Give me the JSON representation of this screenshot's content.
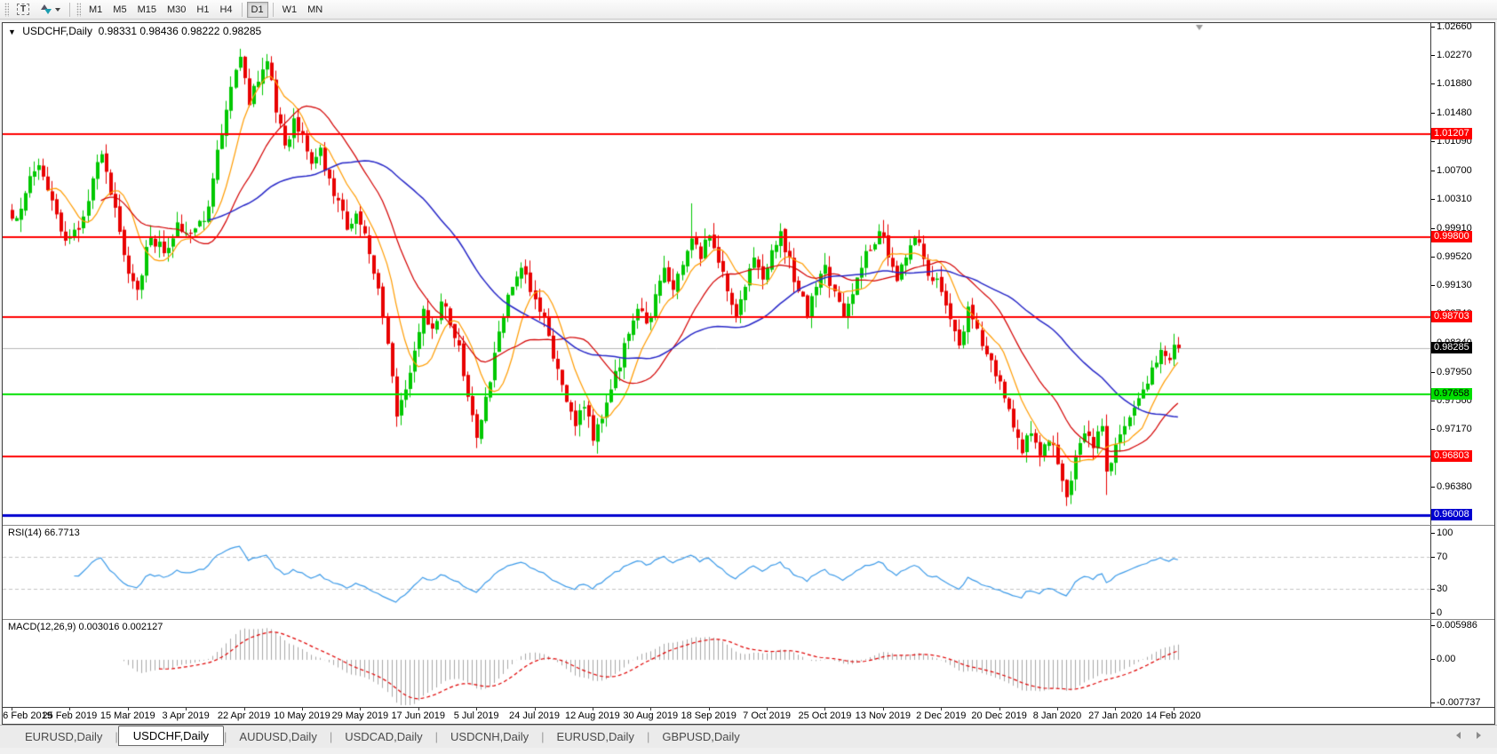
{
  "toolbar": {
    "tools": [
      {
        "name": "text-label-tool",
        "glyph": "T"
      },
      {
        "name": "arrange-sort-tool",
        "glyph": "sort"
      }
    ],
    "timeframes": [
      "M1",
      "M5",
      "M15",
      "M30",
      "H1",
      "H4",
      "D1",
      "W1",
      "MN"
    ],
    "active_timeframe": "D1"
  },
  "chart": {
    "info": {
      "symbol_timeframe": "USDCHF,Daily",
      "open": "0.98331",
      "high": "0.98436",
      "low": "0.98222",
      "close": "0.98285"
    }
  },
  "indicators": {
    "rsi": {
      "title": "RSI(14)",
      "value": "66.7713",
      "ticks": [
        "100",
        "70",
        "30",
        "0"
      ],
      "line_color": "#3d9be9"
    },
    "macd": {
      "title": "MACD(12,26,9)",
      "value_main": "0.003016",
      "value_signal": "0.002127",
      "ticks": [
        "0.005986",
        "0.00",
        "-0.007737"
      ],
      "hist_color": "#a8a8a8",
      "signal_color": "#e00000"
    }
  },
  "tabs": {
    "items": [
      "EURUSD,Daily",
      "USDCHF,Daily",
      "AUDUSD,Daily",
      "USDCAD,Daily",
      "USDCNH,Daily",
      "EURUSD,Daily",
      "GBPUSD,Daily"
    ],
    "active_index": 1
  },
  "chart_data": {
    "type": "candlestick",
    "symbol": "USDCHF",
    "timeframe": "Daily",
    "ylim": [
      0.95872,
      1.0272
    ],
    "grid": false,
    "price_ticks": [
      "1.02660",
      "1.02270",
      "1.01880",
      "1.01480",
      "1.01090",
      "1.00700",
      "1.00310",
      "0.99910",
      "0.99520",
      "0.99130",
      "0.98740",
      "0.98340",
      "0.97950",
      "0.97560",
      "0.97170",
      "0.96780",
      "0.96380"
    ],
    "x_labels": [
      "6 Feb 2019",
      "25 Feb 2019",
      "15 Mar 2019",
      "3 Apr 2019",
      "22 Apr 2019",
      "10 May 2019",
      "29 May 2019",
      "17 Jun 2019",
      "5 Jul 2019",
      "24 Jul 2019",
      "12 Aug 2019",
      "30 Aug 2019",
      "18 Sep 2019",
      "7 Oct 2019",
      "25 Oct 2019",
      "13 Nov 2019",
      "2 Dec 2019",
      "20 Dec 2019",
      "8 Jan 2020",
      "27 Jan 2020",
      "14 Feb 2020"
    ],
    "bars_per_label": 13,
    "bar_count": 262,
    "levels": [
      {
        "price": 1.01207,
        "label": "1.01207",
        "color": "#ff0000",
        "width": 2,
        "label_bg": "#ff0000",
        "label_fg": "#ffffff"
      },
      {
        "price": 0.998,
        "label": "0.99800",
        "color": "#ff0000",
        "width": 2,
        "label_bg": "#ff0000",
        "label_fg": "#ffffff"
      },
      {
        "price": 0.98703,
        "label": "0.98703",
        "color": "#ff0000",
        "width": 2,
        "label_bg": "#ff0000",
        "label_fg": "#ffffff"
      },
      {
        "price": 0.97658,
        "label": "0.97658",
        "color": "#00e000",
        "width": 2,
        "label_bg": "#00e000",
        "label_fg": "#000000"
      },
      {
        "price": 0.96803,
        "label": "0.96803",
        "color": "#ff0000",
        "width": 2,
        "label_bg": "#ff0000",
        "label_fg": "#ffffff"
      },
      {
        "price": 0.96008,
        "label": "0.96008",
        "color": "#0000d0",
        "width": 3,
        "label_bg": "#0000d0",
        "label_fg": "#ffffff"
      }
    ],
    "current_price": {
      "price": 0.98285,
      "label": "0.98285",
      "line_color": "#b8b8b8",
      "label_bg": "#000000",
      "label_fg": "#ffffff"
    },
    "colors": {
      "bull": "#00c800",
      "bear": "#e80000"
    },
    "moving_averages": [
      {
        "period": 9,
        "color": "#ff9c00"
      },
      {
        "period": 21,
        "color": "#d40000"
      },
      {
        "period": 45,
        "color": "#2828c8"
      }
    ],
    "last_bar": {
      "open": 0.98331,
      "high": 0.98436,
      "low": 0.98222,
      "close": 0.98285
    },
    "wick_overrides": {
      "51": {
        "high": 1.0237
      },
      "104": {
        "low": 0.9692
      },
      "152": {
        "high": 1.0026
      },
      "236": {
        "low": 0.9613
      },
      "245": {
        "low": 0.9628
      }
    },
    "close_anchors": [
      [
        0,
        1.0005
      ],
      [
        3,
        1.004
      ],
      [
        6,
        1.0078
      ],
      [
        9,
        1.003
      ],
      [
        12,
        0.9975
      ],
      [
        15,
        0.999
      ],
      [
        18,
        1.006
      ],
      [
        20,
        1.0093
      ],
      [
        23,
        1.002
      ],
      [
        26,
        0.993
      ],
      [
        28,
        0.9908
      ],
      [
        31,
        0.998
      ],
      [
        34,
        0.9958
      ],
      [
        37,
        1.0
      ],
      [
        40,
        0.9985
      ],
      [
        43,
        1.0002
      ],
      [
        45,
        1.006
      ],
      [
        47,
        1.012
      ],
      [
        49,
        1.0185
      ],
      [
        51,
        1.0226
      ],
      [
        53,
        1.016
      ],
      [
        55,
        1.0192
      ],
      [
        57,
        1.022
      ],
      [
        59,
        1.015
      ],
      [
        61,
        1.0105
      ],
      [
        63,
        1.0142
      ],
      [
        65,
        1.012
      ],
      [
        67,
        1.008
      ],
      [
        69,
        1.0102
      ],
      [
        71,
        1.006
      ],
      [
        73,
        1.003
      ],
      [
        75,
        0.999
      ],
      [
        77,
        1.0012
      ],
      [
        79,
        0.9985
      ],
      [
        81,
        0.993
      ],
      [
        83,
        0.987
      ],
      [
        85,
        0.979
      ],
      [
        86,
        0.9735
      ],
      [
        88,
        0.9772
      ],
      [
        90,
        0.9825
      ],
      [
        92,
        0.9882
      ],
      [
        94,
        0.9855
      ],
      [
        96,
        0.9892
      ],
      [
        98,
        0.986
      ],
      [
        100,
        0.9832
      ],
      [
        102,
        0.9762
      ],
      [
        104,
        0.9706
      ],
      [
        106,
        0.9762
      ],
      [
        108,
        0.9822
      ],
      [
        110,
        0.9872
      ],
      [
        112,
        0.9912
      ],
      [
        114,
        0.9938
      ],
      [
        116,
        0.9905
      ],
      [
        118,
        0.9878
      ],
      [
        120,
        0.9845
      ],
      [
        122,
        0.98
      ],
      [
        124,
        0.9755
      ],
      [
        126,
        0.9722
      ],
      [
        128,
        0.9748
      ],
      [
        130,
        0.9702
      ],
      [
        132,
        0.9732
      ],
      [
        134,
        0.9772
      ],
      [
        136,
        0.9802
      ],
      [
        138,
        0.9848
      ],
      [
        140,
        0.9882
      ],
      [
        142,
        0.9862
      ],
      [
        144,
        0.9902
      ],
      [
        146,
        0.9938
      ],
      [
        148,
        0.9908
      ],
      [
        150,
        0.9942
      ],
      [
        152,
        0.9978
      ],
      [
        154,
        0.995
      ],
      [
        156,
        0.9982
      ],
      [
        158,
        0.9945
      ],
      [
        160,
        0.9906
      ],
      [
        162,
        0.9872
      ],
      [
        164,
        0.9912
      ],
      [
        166,
        0.9952
      ],
      [
        168,
        0.9922
      ],
      [
        170,
        0.9962
      ],
      [
        172,
        0.9988
      ],
      [
        174,
        0.9952
      ],
      [
        176,
        0.9906
      ],
      [
        178,
        0.9872
      ],
      [
        180,
        0.9912
      ],
      [
        182,
        0.9942
      ],
      [
        184,
        0.9906
      ],
      [
        186,
        0.9872
      ],
      [
        188,
        0.9902
      ],
      [
        190,
        0.9938
      ],
      [
        192,
        0.9962
      ],
      [
        194,
        0.9988
      ],
      [
        196,
        0.9952
      ],
      [
        198,
        0.992
      ],
      [
        200,
        0.9952
      ],
      [
        202,
        0.998
      ],
      [
        204,
        0.995
      ],
      [
        206,
        0.992
      ],
      [
        208,
        0.9905
      ],
      [
        210,
        0.9868
      ],
      [
        212,
        0.9832
      ],
      [
        214,
        0.9885
      ],
      [
        216,
        0.9855
      ],
      [
        218,
        0.982
      ],
      [
        220,
        0.979
      ],
      [
        222,
        0.976
      ],
      [
        224,
        0.972
      ],
      [
        226,
        0.9685
      ],
      [
        228,
        0.9712
      ],
      [
        230,
        0.9682
      ],
      [
        232,
        0.9702
      ],
      [
        234,
        0.967
      ],
      [
        236,
        0.9625
      ],
      [
        238,
        0.9682
      ],
      [
        240,
        0.9712
      ],
      [
        242,
        0.9692
      ],
      [
        244,
        0.9722
      ],
      [
        245,
        0.966
      ],
      [
        247,
        0.9697
      ],
      [
        249,
        0.9722
      ],
      [
        251,
        0.9747
      ],
      [
        253,
        0.9772
      ],
      [
        255,
        0.9802
      ],
      [
        257,
        0.9826
      ],
      [
        259,
        0.9812
      ],
      [
        260,
        0.9833
      ],
      [
        261,
        0.98285
      ]
    ],
    "rsi_range": [
      0,
      100
    ],
    "rsi_guides": [
      70,
      30
    ],
    "macd_scale": {
      "max": 0.005986,
      "zero": 0.0,
      "min": -0.007737
    }
  }
}
